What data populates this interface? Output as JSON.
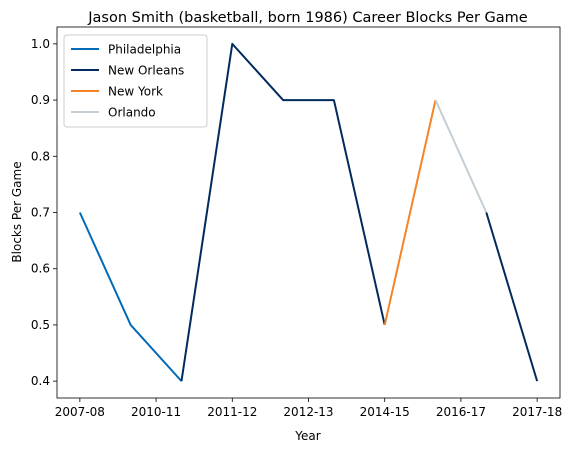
{
  "chart_data": {
    "type": "line",
    "title": "Jason Smith (basketball, born 1986) Career Blocks Per Game",
    "xlabel": "Year",
    "ylabel": "Blocks Per Game",
    "x_tick_labels": [
      "2007-08",
      "2010-11",
      "2011-12",
      "2012-13",
      "2014-15",
      "2016-17",
      "2017-18"
    ],
    "y_ticks": [
      0.4,
      0.5,
      0.6,
      0.7,
      0.8,
      0.9,
      1.0
    ],
    "ylim": [
      0.37,
      1.03
    ],
    "legend_position": "upper-left",
    "grid": false,
    "series": [
      {
        "name": "Philadelphia",
        "color": "#006bb6",
        "x": [
          0,
          1,
          2
        ],
        "y": [
          0.7,
          0.5,
          0.4
        ]
      },
      {
        "name": "New Orleans",
        "color": "#002b5c",
        "x": [
          2,
          3,
          4,
          5,
          6
        ],
        "y": [
          0.4,
          1.0,
          0.9,
          0.9,
          0.5
        ]
      },
      {
        "name": "New York",
        "color": "#f58426",
        "x": [
          6,
          7
        ],
        "y": [
          0.5,
          0.9
        ]
      },
      {
        "name": "Orlando",
        "color": "#c4ced4",
        "x": [
          7,
          8
        ],
        "y": [
          0.9,
          0.7
        ]
      },
      {
        "name": "New Orleans",
        "color": "#002b5c",
        "x": [
          8,
          9
        ],
        "y": [
          0.7,
          0.4
        ]
      }
    ]
  }
}
